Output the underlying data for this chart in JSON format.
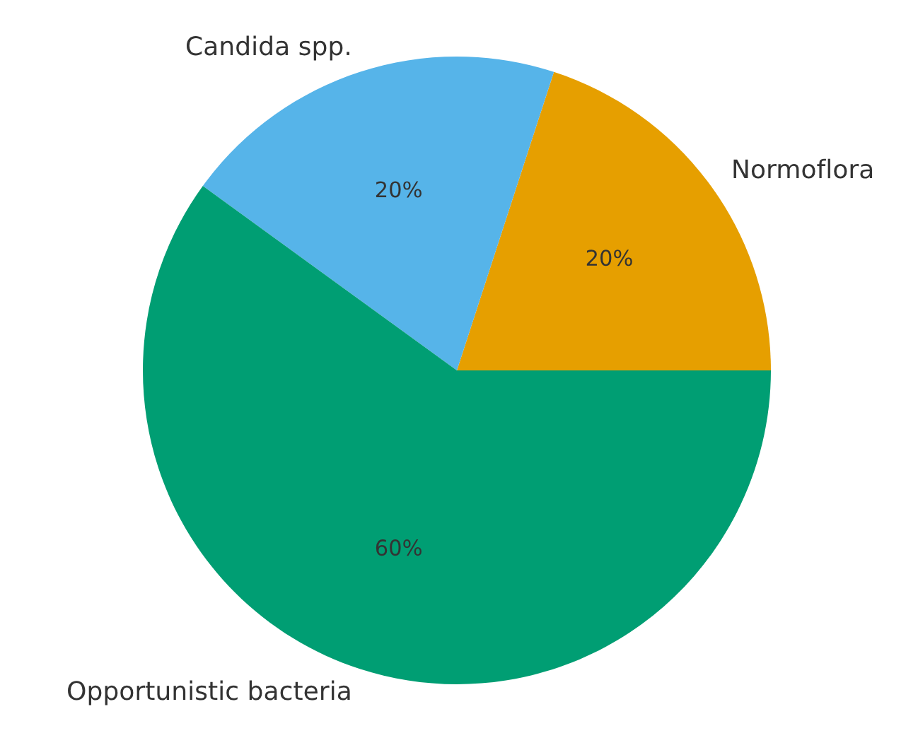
{
  "chart_data": {
    "type": "pie",
    "categories": [
      "Normoflora",
      "Candida spp.",
      "Opportunistic bacteria"
    ],
    "values": [
      20,
      20,
      60
    ],
    "colors": [
      "#e69f00",
      "#56b4e9",
      "#009e73"
    ],
    "value_labels": [
      "20%",
      "20%",
      "60%"
    ]
  }
}
